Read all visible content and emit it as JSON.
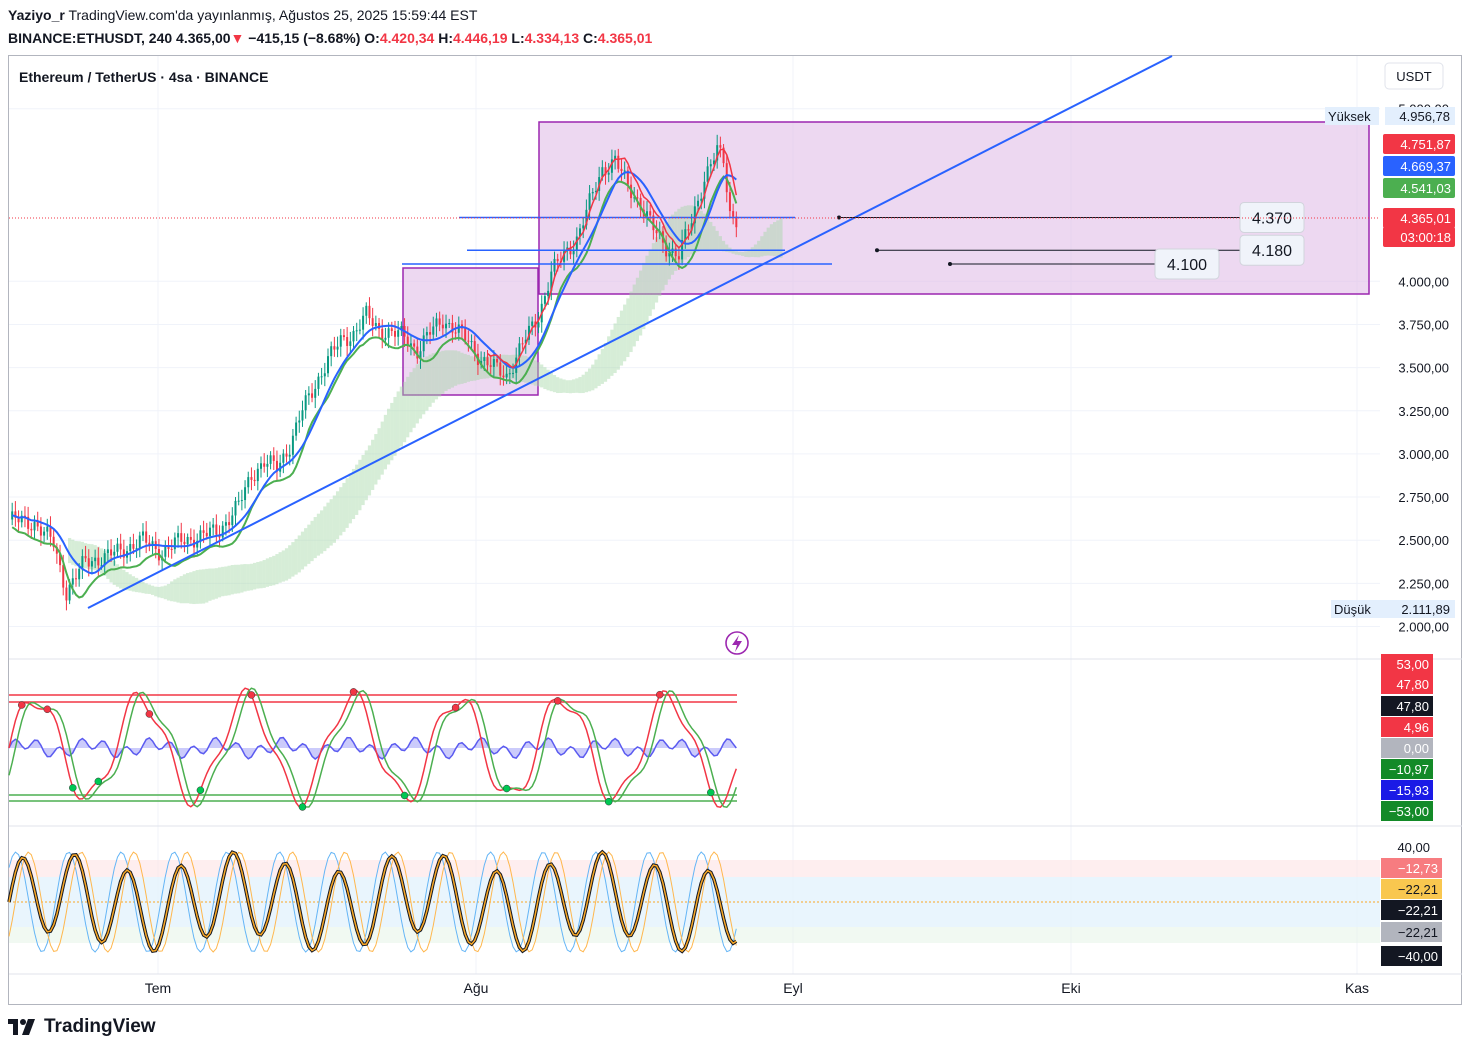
{
  "header": {
    "author": "Yaziyo_r",
    "published": "TradingView.com'da yayınlanmış, Ağustos 25, 2025 15:59:44 EST",
    "symbol": "BINANCE:ETHUSDT, 240",
    "last": "4.365,00",
    "change": "−415,15 (−8.68%)",
    "o_label": "O:",
    "o": "4.420,34",
    "h_label": "H:",
    "h": "4.446,19",
    "l_label": "L:",
    "l": "4.334,13",
    "c_label": "C:",
    "c": "4.365,01"
  },
  "chart_title": "Ethereum / TetherUS · 4sa · BINANCE",
  "currency": "USDT",
  "footer_brand": "TradingView",
  "colors": {
    "up": "#089981",
    "down": "#f23645",
    "trend": "#2962ff",
    "box_fill": "#e1bee7",
    "box_border": "#9c27b0",
    "kijun": "#4caf50",
    "tenkan_red": "#f23645",
    "ma": "#2962ff"
  },
  "chart_data": {
    "type": "candlestick",
    "x_ticks": [
      "Tem",
      "Ağu",
      "Eyl",
      "Eki",
      "Kas"
    ],
    "y_ticks": [
      "2.000,00",
      "2.250,00",
      "2.500,00",
      "2.750,00",
      "3.000,00",
      "3.250,00",
      "3.500,00",
      "3.750,00",
      "4.000,00",
      "5.000,00"
    ],
    "ylim": [
      1950,
      5050
    ],
    "ohlc_path": [
      [
        0,
        2620
      ],
      [
        8,
        2600
      ],
      [
        14,
        2480
      ],
      [
        18,
        2200
      ],
      [
        24,
        2380
      ],
      [
        30,
        2400
      ],
      [
        36,
        2450
      ],
      [
        42,
        2500
      ],
      [
        48,
        2430
      ],
      [
        54,
        2500
      ],
      [
        60,
        2520
      ],
      [
        66,
        2560
      ],
      [
        72,
        2700
      ],
      [
        76,
        2880
      ],
      [
        80,
        2950
      ],
      [
        84,
        2920
      ],
      [
        88,
        3050
      ],
      [
        92,
        3250
      ],
      [
        96,
        3400
      ],
      [
        100,
        3550
      ],
      [
        104,
        3650
      ],
      [
        108,
        3700
      ],
      [
        112,
        3800
      ],
      [
        116,
        3720
      ],
      [
        120,
        3700
      ],
      [
        124,
        3680
      ],
      [
        128,
        3600
      ],
      [
        132,
        3700
      ],
      [
        136,
        3780
      ],
      [
        140,
        3720
      ],
      [
        144,
        3650
      ],
      [
        148,
        3550
      ],
      [
        152,
        3500
      ],
      [
        156,
        3450
      ],
      [
        160,
        3600
      ],
      [
        166,
        3800
      ],
      [
        170,
        4050
      ],
      [
        174,
        4150
      ],
      [
        178,
        4250
      ],
      [
        182,
        4450
      ],
      [
        186,
        4650
      ],
      [
        190,
        4700
      ],
      [
        194,
        4550
      ],
      [
        198,
        4450
      ],
      [
        202,
        4300
      ],
      [
        206,
        4200
      ],
      [
        210,
        4150
      ],
      [
        214,
        4350
      ],
      [
        218,
        4600
      ],
      [
        222,
        4750
      ],
      [
        224,
        4700
      ],
      [
        226,
        4400
      ],
      [
        228,
        4365
      ]
    ],
    "price_labels": [
      {
        "text": "Yüksek",
        "value": "4.956,78"
      },
      {
        "text": "Düşük",
        "value": "2.111,89"
      }
    ],
    "level_badges": [
      "4.751,87",
      "4.669,37",
      "4.541,03",
      "4.365,01",
      "03:00:18"
    ],
    "horizontal_levels": [
      {
        "label": "4.370",
        "price": 4370
      },
      {
        "label": "4.180",
        "price": 4180
      },
      {
        "label": "4.100",
        "price": 4100
      }
    ],
    "osc1_badges": [
      "53,00",
      "47,80",
      "47,80",
      "4,96",
      "0,00",
      "−10,97",
      "−15,93",
      "−53,00"
    ],
    "osc2_ticks": [
      "40,00"
    ],
    "osc2_badges": [
      "−12,73",
      "−22,21",
      "−22,21",
      "−22,21",
      "−40,00"
    ]
  }
}
